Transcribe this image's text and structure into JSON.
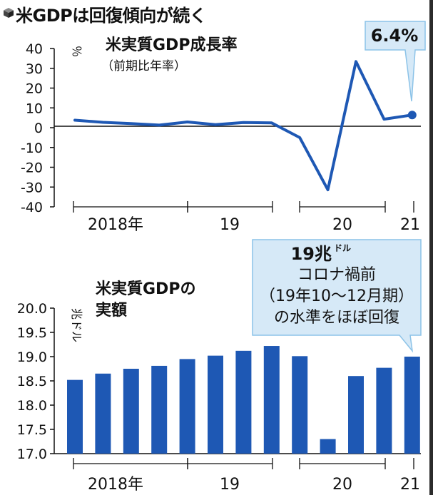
{
  "header": {
    "title": "米GDPは回復傾向が続く",
    "icon": "cube-icon"
  },
  "colors": {
    "series": "#1e58b4",
    "callout_fill": "#d6e9f7",
    "callout_stroke": "#8cc3e8",
    "axis": "#111111"
  },
  "chart_data": [
    {
      "type": "line",
      "title": "米実質GDP成長率",
      "subtitle": "（前期比年率）",
      "ylabel": "％",
      "ylim": [
        -40,
        40
      ],
      "yticks": [
        "40",
        "30",
        "20",
        "10",
        "0",
        "-10",
        "-20",
        "-30",
        "-40"
      ],
      "xlabels": [
        "2018年",
        "19",
        "20",
        "21"
      ],
      "series": [
        {
          "values": [
            3.8,
            2.7,
            2.1,
            1.3,
            2.9,
            1.5,
            2.6,
            2.4,
            -5.0,
            -31.4,
            33.4,
            4.3,
            6.4
          ]
        }
      ],
      "annotation": "6.4%"
    },
    {
      "type": "bar",
      "title": "米実質GDPの",
      "title2": "実額",
      "ylabel": "兆ドル",
      "ylim": [
        17.0,
        20.0
      ],
      "yticks": [
        "20.0",
        "19.5",
        "19.0",
        "18.5",
        "18.0",
        "17.5",
        "17.0"
      ],
      "xlabels": [
        "2018年",
        "19",
        "20",
        "21"
      ],
      "values": [
        18.52,
        18.65,
        18.75,
        18.81,
        18.95,
        19.02,
        19.12,
        19.22,
        19.01,
        17.3,
        18.6,
        18.77,
        19.0
      ],
      "annotation": {
        "title": "19兆",
        "unit": "ドル",
        "line1": "コロナ禍前",
        "line2": "（19年10～12月期）",
        "line3": "の水準をほぼ回復"
      }
    }
  ]
}
